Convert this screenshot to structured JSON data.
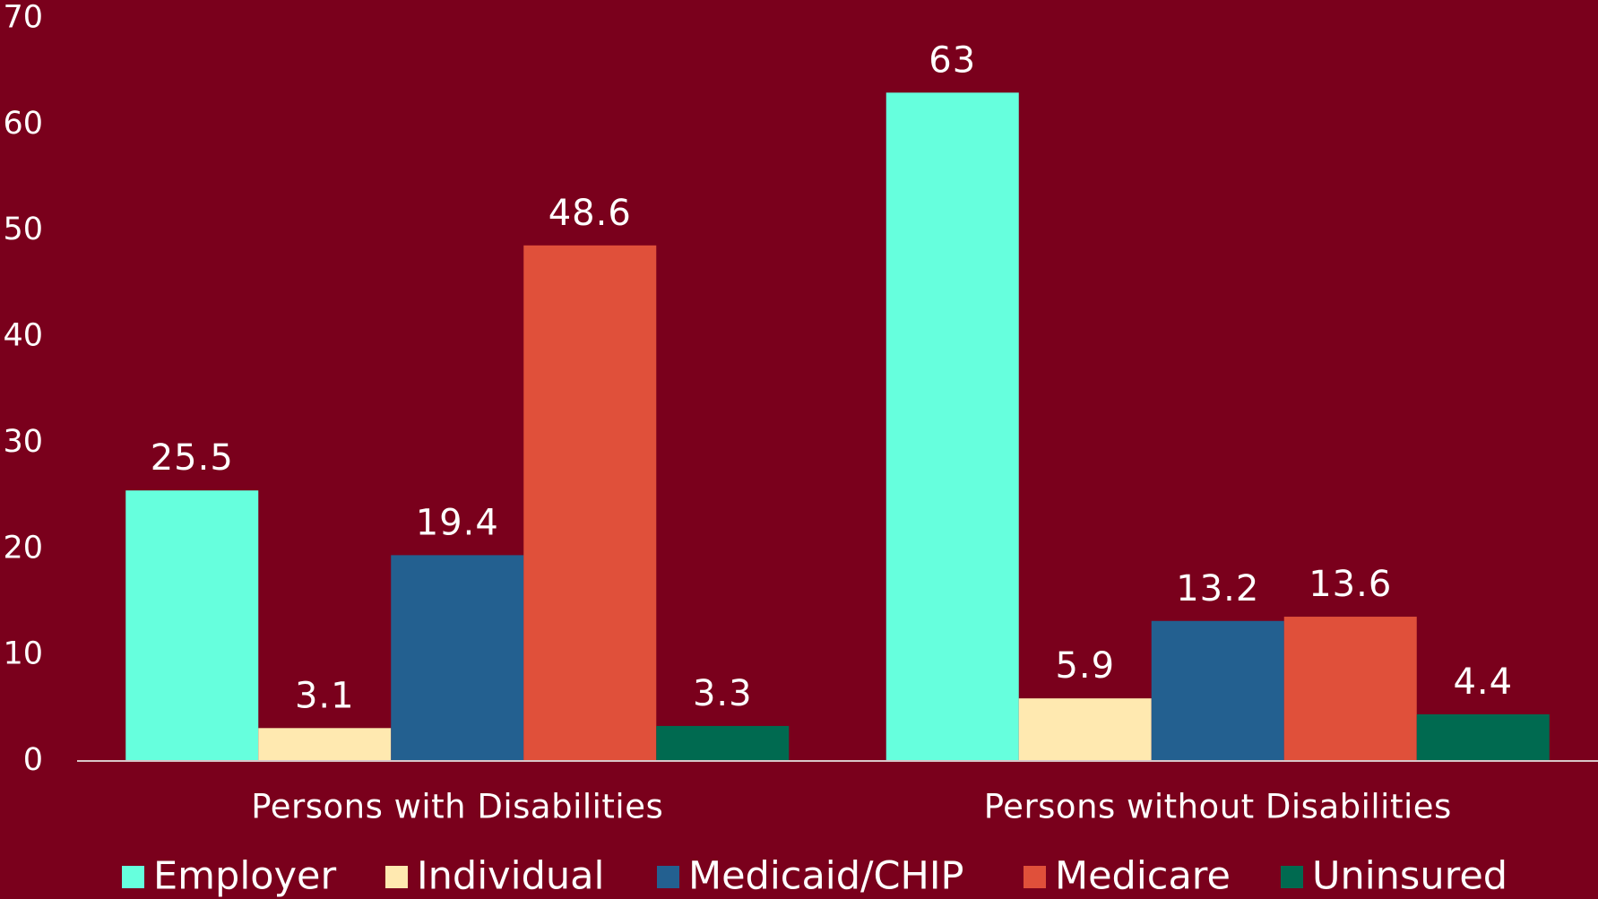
{
  "chart_data": {
    "type": "bar",
    "categories": [
      "Persons with Disabilities",
      "Persons without Disabilities"
    ],
    "series": [
      {
        "name": "Employer",
        "color": "#66ffdd",
        "values": [
          25.5,
          63
        ]
      },
      {
        "name": "Individual",
        "color": "#ffe9b0",
        "values": [
          3.1,
          5.9
        ]
      },
      {
        "name": "Medicaid/CHIP",
        "color": "#236090",
        "values": [
          19.4,
          13.2
        ]
      },
      {
        "name": "Medicare",
        "color": "#e0503a",
        "values": [
          48.6,
          13.6
        ]
      },
      {
        "name": "Uninsured",
        "color": "#006a50",
        "values": [
          3.3,
          4.4
        ]
      }
    ],
    "ylim": [
      0,
      70
    ],
    "yticks": [
      0,
      10,
      20,
      30,
      40,
      50,
      60,
      70
    ],
    "grid": false,
    "legend": "bottom"
  }
}
